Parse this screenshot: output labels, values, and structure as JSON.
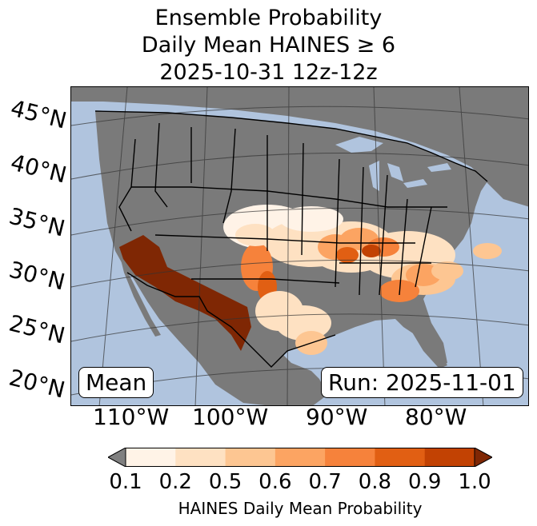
{
  "title": {
    "line1": "Ensemble Probability",
    "line2": "Daily Mean HAINES ≥ 6",
    "line3": "2025-10-31 12z-12z"
  },
  "map": {
    "lat_labels": [
      "45°N",
      "40°N",
      "35°N",
      "30°N",
      "25°N",
      "20°N"
    ],
    "lon_labels": [
      "110°W",
      "100°W",
      "90°W",
      "80°W"
    ],
    "stat_label": "Mean",
    "run_label": "Run: 2025-11-01",
    "colors": {
      "ocean": "#b0c4de",
      "land": "#7a7a7a",
      "borders": "#000000"
    }
  },
  "colorbar": {
    "label": "HAINES Daily Mean Probability",
    "ticks": [
      "0.1",
      "0.2",
      "0.5",
      "0.6",
      "0.7",
      "0.8",
      "0.9",
      "1.0"
    ],
    "colors": [
      "#fff3e7",
      "#fee1c2",
      "#fdc692",
      "#fca462",
      "#f6823b",
      "#e15f13",
      "#c24203"
    ],
    "under_color": "#808080",
    "over_color": "#7f2704"
  }
}
